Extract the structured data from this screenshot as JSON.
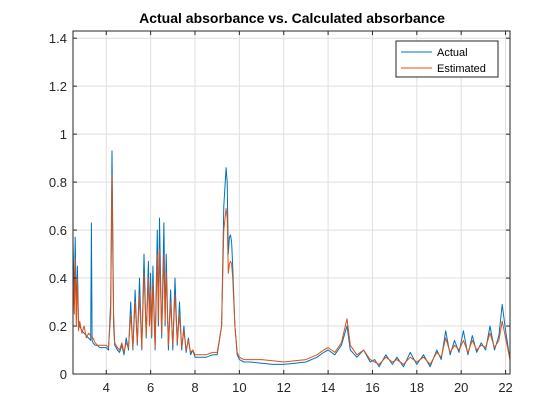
{
  "chart_data": {
    "type": "line",
    "title": "Actual absorbance vs. Calculated absorbance",
    "xlabel": "",
    "ylabel": "",
    "xlim": [
      2.5,
      22.2
    ],
    "ylim": [
      0,
      1.43
    ],
    "xticks": [
      4,
      6,
      8,
      10,
      12,
      14,
      16,
      18,
      20,
      22
    ],
    "yticks": [
      0,
      0.2,
      0.4,
      0.6,
      0.8,
      1,
      1.2,
      1.4
    ],
    "xtick_labels": [
      "4",
      "6",
      "8",
      "10",
      "12",
      "14",
      "16",
      "18",
      "20",
      "22"
    ],
    "ytick_labels": [
      "0",
      "0.2",
      "0.4",
      "0.6",
      "0.8",
      "1",
      "1.2",
      "1.4"
    ],
    "grid": true,
    "legend_location": "top-right",
    "series": [
      {
        "name": "Actual",
        "color": "#0072BD",
        "x": [
          2.5,
          2.56,
          2.6,
          2.65,
          2.7,
          2.75,
          2.8,
          2.9,
          3.0,
          3.1,
          3.2,
          3.3,
          3.33,
          3.36,
          3.4,
          3.5,
          3.6,
          3.7,
          3.8,
          3.9,
          4.0,
          4.1,
          4.2,
          4.26,
          4.3,
          4.33,
          4.38,
          4.5,
          4.6,
          4.7,
          4.8,
          4.9,
          5.0,
          5.1,
          5.2,
          5.3,
          5.4,
          5.5,
          5.6,
          5.7,
          5.8,
          5.9,
          5.95,
          6.0,
          6.05,
          6.1,
          6.2,
          6.3,
          6.35,
          6.4,
          6.5,
          6.6,
          6.65,
          6.7,
          6.8,
          6.9,
          7.0,
          7.1,
          7.2,
          7.3,
          7.4,
          7.5,
          7.6,
          7.7,
          7.8,
          7.9,
          8.0,
          8.2,
          8.5,
          8.8,
          9.0,
          9.2,
          9.3,
          9.4,
          9.45,
          9.5,
          9.55,
          9.6,
          9.65,
          9.7,
          9.8,
          9.9,
          10.0,
          10.2,
          10.5,
          11.0,
          11.5,
          12.0,
          12.5,
          13.0,
          13.5,
          13.8,
          14.0,
          14.3,
          14.6,
          14.85,
          15.0,
          15.3,
          15.6,
          15.9,
          16.1,
          16.3,
          16.6,
          16.9,
          17.1,
          17.4,
          17.7,
          18.0,
          18.3,
          18.6,
          18.9,
          19.1,
          19.3,
          19.5,
          19.7,
          19.9,
          20.1,
          20.3,
          20.5,
          20.7,
          20.9,
          21.1,
          21.3,
          21.5,
          21.7,
          21.85,
          22.0,
          22.2
        ],
        "y": [
          0.55,
          0.3,
          0.57,
          0.25,
          0.45,
          0.22,
          0.2,
          0.18,
          0.17,
          0.16,
          0.15,
          0.14,
          0.63,
          0.14,
          0.13,
          0.12,
          0.12,
          0.11,
          0.11,
          0.11,
          0.11,
          0.1,
          0.3,
          0.93,
          0.55,
          0.2,
          0.12,
          0.1,
          0.09,
          0.12,
          0.08,
          0.15,
          0.1,
          0.3,
          0.1,
          0.35,
          0.12,
          0.4,
          0.1,
          0.5,
          0.15,
          0.47,
          0.2,
          0.42,
          0.15,
          0.45,
          0.1,
          0.6,
          0.2,
          0.65,
          0.15,
          0.63,
          0.2,
          0.5,
          0.1,
          0.35,
          0.1,
          0.4,
          0.12,
          0.3,
          0.1,
          0.2,
          0.09,
          0.15,
          0.08,
          0.1,
          0.07,
          0.07,
          0.07,
          0.08,
          0.08,
          0.2,
          0.7,
          0.86,
          0.8,
          0.5,
          0.57,
          0.58,
          0.55,
          0.45,
          0.2,
          0.08,
          0.06,
          0.05,
          0.05,
          0.045,
          0.04,
          0.04,
          0.045,
          0.05,
          0.07,
          0.09,
          0.1,
          0.08,
          0.12,
          0.2,
          0.1,
          0.07,
          0.1,
          0.05,
          0.06,
          0.03,
          0.08,
          0.04,
          0.07,
          0.03,
          0.09,
          0.04,
          0.08,
          0.03,
          0.1,
          0.06,
          0.18,
          0.08,
          0.14,
          0.09,
          0.18,
          0.08,
          0.16,
          0.09,
          0.13,
          0.1,
          0.2,
          0.1,
          0.16,
          0.29,
          0.18,
          0.06
        ]
      },
      {
        "name": "Estimated",
        "color": "#D95319",
        "x": [
          2.5,
          2.56,
          2.6,
          2.65,
          2.7,
          2.75,
          2.8,
          2.9,
          3.0,
          3.1,
          3.2,
          3.3,
          3.4,
          3.5,
          3.6,
          3.7,
          3.8,
          3.9,
          4.0,
          4.1,
          4.2,
          4.26,
          4.3,
          4.33,
          4.38,
          4.5,
          4.6,
          4.7,
          4.8,
          4.9,
          5.0,
          5.1,
          5.2,
          5.3,
          5.4,
          5.5,
          5.6,
          5.7,
          5.8,
          5.9,
          5.95,
          6.0,
          6.05,
          6.1,
          6.2,
          6.3,
          6.35,
          6.4,
          6.5,
          6.6,
          6.65,
          6.7,
          6.8,
          6.9,
          7.0,
          7.1,
          7.2,
          7.3,
          7.4,
          7.5,
          7.6,
          7.7,
          7.8,
          7.9,
          8.0,
          8.2,
          8.5,
          8.8,
          9.0,
          9.2,
          9.3,
          9.4,
          9.45,
          9.5,
          9.55,
          9.6,
          9.65,
          9.7,
          9.8,
          9.9,
          10.0,
          10.2,
          10.5,
          11.0,
          11.5,
          12.0,
          12.5,
          13.0,
          13.5,
          13.8,
          14.0,
          14.3,
          14.6,
          14.85,
          15.0,
          15.3,
          15.6,
          15.9,
          16.1,
          16.3,
          16.6,
          16.9,
          17.1,
          17.4,
          17.7,
          18.0,
          18.3,
          18.6,
          18.9,
          19.1,
          19.3,
          19.5,
          19.7,
          19.9,
          20.1,
          20.3,
          20.5,
          20.7,
          20.9,
          21.1,
          21.3,
          21.5,
          21.7,
          21.85,
          22.0,
          22.2
        ],
        "y": [
          0.45,
          0.25,
          0.48,
          0.2,
          0.4,
          0.18,
          0.22,
          0.17,
          0.2,
          0.15,
          0.17,
          0.16,
          0.15,
          0.13,
          0.12,
          0.12,
          0.12,
          0.12,
          0.12,
          0.11,
          0.25,
          0.83,
          0.45,
          0.25,
          0.13,
          0.11,
          0.1,
          0.13,
          0.09,
          0.13,
          0.11,
          0.25,
          0.11,
          0.3,
          0.13,
          0.33,
          0.11,
          0.42,
          0.16,
          0.4,
          0.2,
          0.35,
          0.16,
          0.38,
          0.11,
          0.5,
          0.22,
          0.52,
          0.17,
          0.5,
          0.22,
          0.42,
          0.12,
          0.3,
          0.12,
          0.33,
          0.13,
          0.25,
          0.11,
          0.18,
          0.1,
          0.14,
          0.09,
          0.1,
          0.08,
          0.08,
          0.08,
          0.09,
          0.09,
          0.2,
          0.6,
          0.69,
          0.65,
          0.42,
          0.46,
          0.47,
          0.46,
          0.4,
          0.2,
          0.09,
          0.07,
          0.06,
          0.06,
          0.06,
          0.055,
          0.05,
          0.055,
          0.06,
          0.08,
          0.1,
          0.11,
          0.09,
          0.13,
          0.23,
          0.12,
          0.08,
          0.1,
          0.06,
          0.05,
          0.04,
          0.07,
          0.05,
          0.06,
          0.04,
          0.07,
          0.05,
          0.07,
          0.04,
          0.09,
          0.07,
          0.15,
          0.09,
          0.12,
          0.1,
          0.14,
          0.09,
          0.14,
          0.1,
          0.12,
          0.11,
          0.17,
          0.11,
          0.14,
          0.22,
          0.15,
          0.06
        ]
      }
    ]
  }
}
